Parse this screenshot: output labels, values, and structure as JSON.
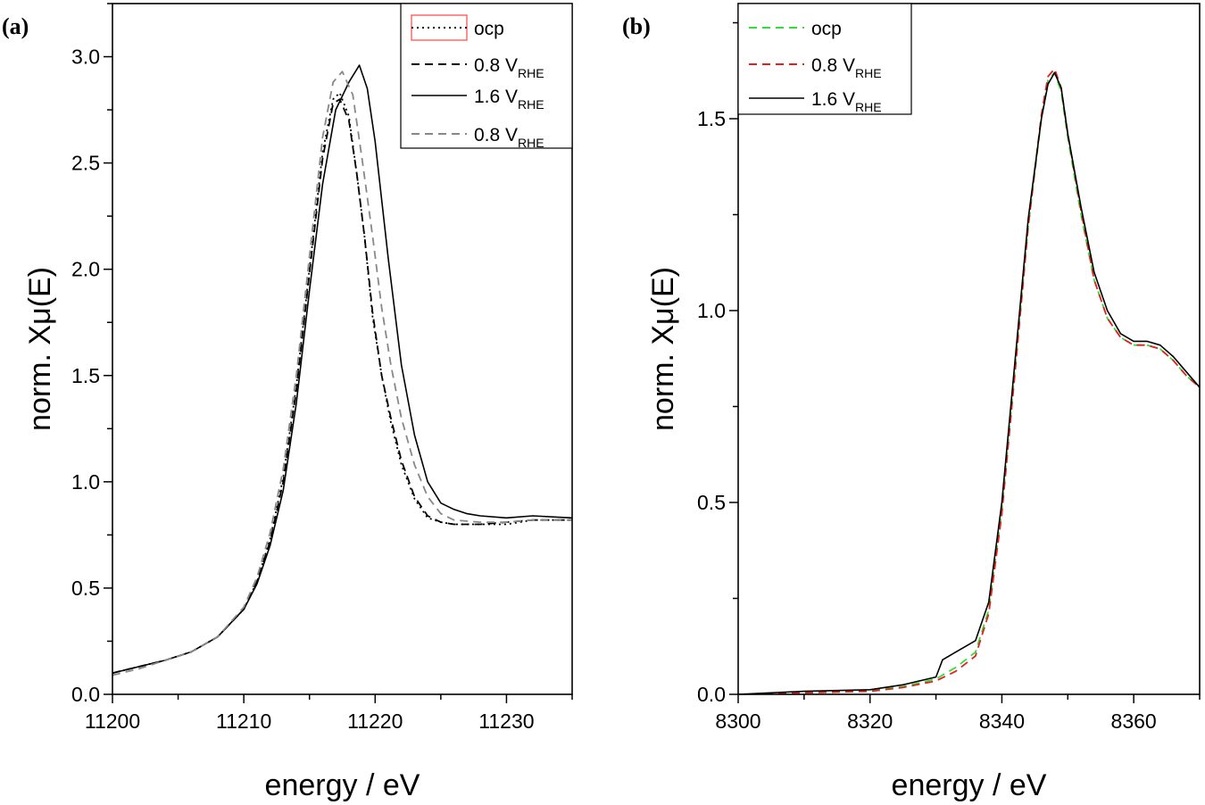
{
  "figure": {
    "panels": [
      "(a)",
      "(b)"
    ]
  },
  "chart_data": [
    {
      "type": "line",
      "panel": "(a)",
      "xlabel": "energy / eV",
      "ylabel": "norm. Xμ(E)",
      "xlim": [
        11200,
        11235
      ],
      "ylim": [
        0,
        3.25
      ],
      "xticks": [
        11200,
        11210,
        11220,
        11230
      ],
      "yticks": [
        0.0,
        0.5,
        1.0,
        1.5,
        2.0,
        2.5,
        3.0
      ],
      "xtick_labels": [
        "11200",
        "11210",
        "11220",
        "11230"
      ],
      "ytick_labels": [
        "0.0",
        "0.5",
        "1.0",
        "1.5",
        "2.0",
        "2.5",
        "3.0"
      ],
      "grid": false,
      "legend_position": "top-right",
      "series": [
        {
          "name": "ocp",
          "name_sub": "",
          "style": "dotted",
          "color": "#000000",
          "legend_box": "#ff4444",
          "x": [
            11200,
            11202,
            11204,
            11206,
            11208,
            11210,
            11211,
            11212,
            11213,
            11214,
            11215,
            11216,
            11216.8,
            11217.3,
            11218,
            11218.6,
            11219.2,
            11219.8,
            11220.5,
            11221.2,
            11222,
            11223,
            11224,
            11225,
            11226,
            11228,
            11230,
            11232,
            11235
          ],
          "y": [
            0.1,
            0.13,
            0.16,
            0.2,
            0.27,
            0.4,
            0.53,
            0.73,
            1.02,
            1.45,
            2.0,
            2.55,
            2.8,
            2.83,
            2.72,
            2.45,
            2.15,
            1.78,
            1.5,
            1.28,
            1.08,
            0.92,
            0.83,
            0.81,
            0.8,
            0.8,
            0.8,
            0.82,
            0.82
          ]
        },
        {
          "name": "0.8 V",
          "name_sub": "RHE",
          "style": "dashed",
          "color": "#000000",
          "x": [
            11200,
            11202,
            11204,
            11206,
            11208,
            11210,
            11211,
            11212,
            11213,
            11214,
            11215,
            11216,
            11216.8,
            11217.3,
            11218,
            11218.6,
            11219.2,
            11219.8,
            11220.5,
            11221.2,
            11222,
            11223,
            11224,
            11225,
            11226,
            11228,
            11230,
            11232,
            11235
          ],
          "y": [
            0.1,
            0.13,
            0.16,
            0.2,
            0.27,
            0.4,
            0.53,
            0.72,
            1.0,
            1.43,
            1.98,
            2.52,
            2.78,
            2.8,
            2.7,
            2.45,
            2.15,
            1.8,
            1.5,
            1.3,
            1.1,
            0.93,
            0.84,
            0.81,
            0.8,
            0.8,
            0.81,
            0.82,
            0.82
          ]
        },
        {
          "name": "1.6 V",
          "name_sub": "RHE",
          "style": "solid",
          "color": "#000000",
          "x": [
            11200,
            11202,
            11204,
            11206,
            11208,
            11210,
            11211,
            11212,
            11213,
            11214,
            11215,
            11216,
            11217,
            11218,
            11218.8,
            11219.4,
            11220,
            11221,
            11222,
            11223,
            11224,
            11225,
            11226,
            11227,
            11228,
            11230,
            11232,
            11235
          ],
          "y": [
            0.1,
            0.13,
            0.16,
            0.2,
            0.27,
            0.4,
            0.52,
            0.7,
            0.96,
            1.37,
            1.9,
            2.4,
            2.75,
            2.88,
            2.96,
            2.85,
            2.6,
            2.05,
            1.55,
            1.22,
            1.0,
            0.9,
            0.87,
            0.85,
            0.84,
            0.83,
            0.84,
            0.83
          ]
        },
        {
          "name": "0.8 V",
          "name_sub": "RHE",
          "style": "dashed",
          "color": "#888888",
          "x": [
            11200,
            11202,
            11204,
            11206,
            11208,
            11210,
            11211,
            11212,
            11213,
            11214,
            11215,
            11216,
            11216.8,
            11217.5,
            11218.3,
            11219,
            11219.8,
            11220.5,
            11221.2,
            11222,
            11223,
            11224,
            11225,
            11226,
            11228,
            11230,
            11232,
            11235
          ],
          "y": [
            0.09,
            0.12,
            0.16,
            0.2,
            0.27,
            0.41,
            0.55,
            0.76,
            1.06,
            1.5,
            2.06,
            2.62,
            2.88,
            2.93,
            2.82,
            2.52,
            2.16,
            1.82,
            1.55,
            1.3,
            1.08,
            0.93,
            0.85,
            0.82,
            0.81,
            0.81,
            0.82,
            0.82
          ]
        }
      ]
    },
    {
      "type": "line",
      "panel": "(b)",
      "xlabel": "energy / eV",
      "ylabel": "norm. Xμ(E)",
      "xlim": [
        8300,
        8370
      ],
      "ylim": [
        0,
        1.8
      ],
      "xticks": [
        8300,
        8320,
        8340,
        8360
      ],
      "yticks": [
        0.0,
        0.5,
        1.0,
        1.5
      ],
      "xtick_labels": [
        "8300",
        "8320",
        "8340",
        "8360"
      ],
      "ytick_labels": [
        "0.0",
        "0.5",
        "1.0",
        "1.5"
      ],
      "grid": false,
      "legend_position": "top-left",
      "series": [
        {
          "name": "ocp",
          "name_sub": "",
          "style": "dashed",
          "color": "#33dd33",
          "x": [
            8300,
            8310,
            8320,
            8325,
            8330,
            8333,
            8336,
            8338,
            8340,
            8342,
            8344,
            8346,
            8347,
            8348,
            8349,
            8350,
            8352,
            8354,
            8356,
            8358,
            8360,
            8362,
            8364,
            8366,
            8368,
            8370
          ],
          "y": [
            0.0,
            0.005,
            0.01,
            0.02,
            0.04,
            0.07,
            0.11,
            0.22,
            0.48,
            0.85,
            1.22,
            1.5,
            1.6,
            1.62,
            1.57,
            1.45,
            1.25,
            1.08,
            0.98,
            0.93,
            0.91,
            0.91,
            0.9,
            0.87,
            0.83,
            0.8
          ]
        },
        {
          "name": "0.8 V",
          "name_sub": "RHE",
          "style": "dashed",
          "color": "#dd2222",
          "x": [
            8300,
            8310,
            8320,
            8325,
            8330,
            8333,
            8336,
            8338,
            8340,
            8342,
            8344,
            8346,
            8347,
            8348,
            8349,
            8350,
            8352,
            8354,
            8356,
            8358,
            8360,
            8362,
            8364,
            8366,
            8368,
            8370
          ],
          "y": [
            0.0,
            0.004,
            0.008,
            0.018,
            0.035,
            0.06,
            0.1,
            0.21,
            0.47,
            0.84,
            1.22,
            1.51,
            1.61,
            1.63,
            1.58,
            1.46,
            1.26,
            1.08,
            0.98,
            0.93,
            0.91,
            0.91,
            0.9,
            0.87,
            0.83,
            0.8
          ]
        },
        {
          "name": "1.6 V",
          "name_sub": "RHE",
          "style": "solid",
          "color": "#000000",
          "x": [
            8300,
            8310,
            8320,
            8325,
            8330,
            8331,
            8333,
            8336,
            8338,
            8340,
            8342,
            8344,
            8346,
            8347,
            8348,
            8349,
            8350,
            8352,
            8354,
            8356,
            8358,
            8360,
            8362,
            8364,
            8366,
            8368,
            8370
          ],
          "y": [
            0.0,
            0.008,
            0.012,
            0.025,
            0.045,
            0.09,
            0.11,
            0.14,
            0.24,
            0.5,
            0.87,
            1.24,
            1.5,
            1.59,
            1.62,
            1.58,
            1.46,
            1.27,
            1.1,
            1.0,
            0.94,
            0.92,
            0.92,
            0.91,
            0.88,
            0.84,
            0.8
          ]
        }
      ]
    }
  ]
}
